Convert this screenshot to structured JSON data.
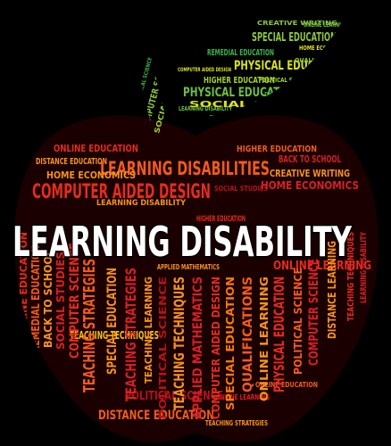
{
  "image": {
    "description_type": "word-cloud",
    "shape": "apple with stem and leaf"
  },
  "palette": {
    "background": "#000000",
    "apple": [
      "#e52b1f",
      "#f25a1d",
      "#f7931e",
      "#d81f26",
      "#b5121b",
      "#f4c20d",
      "#ff7a00"
    ],
    "leaf": [
      "#8dc63f",
      "#39b54a",
      "#d7e31d",
      "#a0d22b",
      "#6ebe44"
    ],
    "stem": [
      "#8dc63f",
      "#a0d22b",
      "#39b54a"
    ],
    "highlight": "#ffffff"
  },
  "words": {
    "main": "LEARNING DISABILITY",
    "leaf": [
      "CREATIVE WRITING",
      "SPECIAL EDUCATION",
      "REMEDIAL EDUCATION",
      "PHYSICAL EDUCATION",
      "HIGHER EDUCATION",
      "PHYSICAL EDUCATION",
      "COMPUTER AIDED DESIGN",
      "DISTANCE EDUCATION",
      "POLITICAL SCIENCE",
      "QUALIFICATIONS",
      "LEARNING DISABILITY",
      "HOME ECONOMICS",
      "TEACHING STRATEGIES",
      "SOCIAL STUDIES",
      "ONLINE LEARNING"
    ],
    "stem": [
      "COMPUTER SCIENCE",
      "SOCIAL STUDIES",
      "POLITICAL SCIENCE"
    ],
    "apple_horizontal": [
      "ONLINE EDUCATION",
      "HIGHER EDUCATION",
      "DISTANCE EDUCATION",
      "LEARNING DISABILITIES",
      "BACK TO SCHOOL",
      "HOME ECONOMICS",
      "CREATIVE WRITING",
      "COMPUTER AIDED DESIGN",
      "SOCIAL STUDIES",
      "HOME ECONOMICS",
      "LEARNING DISABILITY",
      "ONLINE LEARNING",
      "TEACHING TECHNIQUES",
      "ONLINE EDUCATION",
      "APPLIED MATHEMATICS",
      "ONLINE LEARNING",
      "POLITICAL SCIENCE",
      "DISTANCE EDUCATION",
      "HIGHER EDUCATION",
      "TEACHING STRATEGIES"
    ],
    "apple_vertical": [
      "ONLINE EDUCATION",
      "REMEDIAL EDUCATION",
      "BACK TO SCHOOL",
      "SOCIAL STUDIES",
      "COMPUTER SCIENCE",
      "TEACHING STRATEGIES",
      "SPECIAL EDUCATION",
      "TEACHING STRATEGIES",
      "TEACHING LEARNING",
      "POLITICAL SCIENCE",
      "TEACHING TECHNIQUES",
      "APPLIED MATHEMATICS",
      "COMPUTER AIDED DESIGN",
      "SPECIAL EDUCATION",
      "QUALIFICATIONS",
      "ONLINE LEARNING",
      "PHYSICAL EDUCATION",
      "POLITICAL SCIENCE",
      "COMPUTER SCIENCE",
      "DISTANCE LEARNING",
      "TEACHING TECHNIQUES",
      "LEARNING DISABILITY"
    ]
  }
}
